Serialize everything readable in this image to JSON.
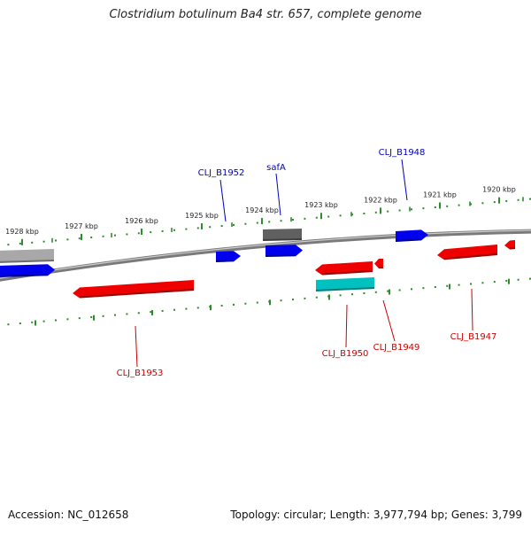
{
  "title": "Clostridium botulinum Ba4 str. 657, complete genome",
  "colors": {
    "axis_ticks": "#2e8b2e",
    "forward_gene": "#0000ee",
    "reverse_gene": "#ee0000",
    "rna_gene": "#00c0c0",
    "pseudo_gene": "#606060",
    "other_gene": "#a8a8a8",
    "forward_label": "#0000bb",
    "reverse_label": "#cc0000"
  },
  "ticks": [
    {
      "label": "1928 kbp"
    },
    {
      "label": "1927 kbp"
    },
    {
      "label": "1926 kbp"
    },
    {
      "label": "1925 kbp"
    },
    {
      "label": "1924 kbp"
    },
    {
      "label": "1923 kbp"
    },
    {
      "label": "1922 kbp"
    },
    {
      "label": "1921 kbp"
    },
    {
      "label": "1920 kbp"
    }
  ],
  "genes_forward": [
    {
      "label": "CLJ_B1952"
    },
    {
      "label": "safA"
    },
    {
      "label": "CLJ_B1948"
    }
  ],
  "genes_reverse": [
    {
      "label": "CLJ_B1953"
    },
    {
      "label": "CLJ_B1950"
    },
    {
      "label": "CLJ_B1949"
    },
    {
      "label": "CLJ_B1947"
    }
  ],
  "footer": {
    "accession": "Accession: NC_012658",
    "topology": "Topology: circular; Length: 3,977,794 bp; Genes: 3,799"
  }
}
